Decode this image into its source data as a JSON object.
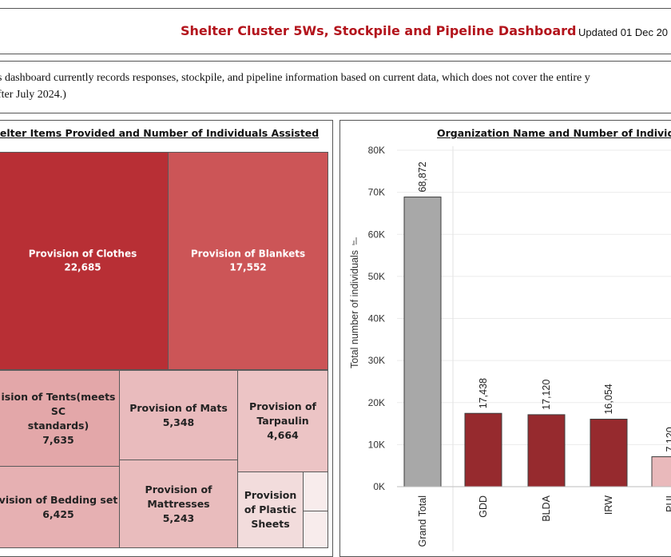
{
  "header": {
    "title": "Shelter Cluster 5Ws, Stockpile and Pipeline Dashboard",
    "updated": "Updated 01 Dec 20"
  },
  "note": {
    "line1": "s dashboard currently records responses, stockpile, and pipeline information based on current data, which does not cover the entire y",
    "line2": "fter July 2024.)"
  },
  "colors": {
    "accent": "#b3141c",
    "grand_total_bar": "#a8a8a8",
    "org_bar": "#962a2e",
    "light_bar": "#e9b9bb"
  },
  "chart_data": [
    {
      "type": "treemap",
      "title": "helter Items Provided and Number of Individuals Assisted",
      "items": [
        {
          "label_lines": [
            "Provision of Clothes"
          ],
          "value_text": "22,685",
          "value": 22685,
          "color": "#b82f35"
        },
        {
          "label_lines": [
            "Provision of Blankets"
          ],
          "value_text": "17,552",
          "value": 17552,
          "color": "#cc5557"
        },
        {
          "label_lines": [
            "ision of Tents(meets SC",
            "standards)"
          ],
          "value_text": "7,635",
          "value": 7635,
          "color": "#e3a7a9"
        },
        {
          "label_lines": [
            "Provision of Mats"
          ],
          "value_text": "5,348",
          "value": 5348,
          "color": "#e9bbbd"
        },
        {
          "label_lines": [
            "Provision of",
            "Tarpaulin"
          ],
          "value_text": "4,664",
          "value": 4664,
          "color": "#ecc4c5"
        },
        {
          "label_lines": [
            "vision of Bedding set"
          ],
          "value_text": "6,425",
          "value": 6425,
          "color": "#e6b0b2"
        },
        {
          "label_lines": [
            "Provision of",
            "Mattresses"
          ],
          "value_text": "5,243",
          "value": 5243,
          "color": "#e9bcbd"
        },
        {
          "label_lines": [
            "Provision",
            "of Plastic",
            "Sheets"
          ],
          "value_text": "",
          "value": null,
          "color": "#f2dcdc"
        },
        {
          "label_lines": [],
          "value_text": "",
          "value": null,
          "color": "#f8ecec"
        },
        {
          "label_lines": [],
          "value_text": "",
          "value": null,
          "color": "#f8ecec"
        }
      ]
    },
    {
      "type": "bar",
      "title": "Organization Name and Number of Individua",
      "ylabel": "Total number of individuals",
      "ylim": [
        0,
        80000
      ],
      "yticks": [
        0,
        10000,
        20000,
        30000,
        40000,
        50000,
        60000,
        70000,
        80000
      ],
      "ytick_labels": [
        "0K",
        "10K",
        "20K",
        "30K",
        "40K",
        "50K",
        "60K",
        "70K",
        "80K"
      ],
      "categories": [
        "Grand Total",
        "GDD",
        "BLDA",
        "IRW",
        "PUI"
      ],
      "values": [
        68872,
        17438,
        17120,
        16054,
        7120
      ],
      "value_labels": [
        "68,872",
        "17,438",
        "17,120",
        "16,054",
        "7,120"
      ],
      "grid": true
    }
  ]
}
